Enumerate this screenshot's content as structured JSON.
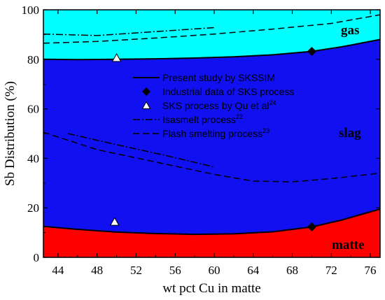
{
  "chart_data": {
    "type": "area",
    "xlabel": "wt pct Cu in matte",
    "ylabel": "Sb Distribution (%)",
    "xlim": [
      42.5,
      77
    ],
    "ylim": [
      0,
      100
    ],
    "xticks": [
      44,
      48,
      52,
      56,
      60,
      64,
      68,
      72,
      76
    ],
    "yticks": [
      0,
      20,
      40,
      60,
      80,
      100
    ],
    "colors": {
      "gas": "#00ffff",
      "slag": "#1010f0",
      "matte": "#ff0000"
    },
    "regions": [
      {
        "label": "gas",
        "color": "#00ffff"
      },
      {
        "label": "slag",
        "color": "#1010f0"
      },
      {
        "label": "matte",
        "color": "#ff0000"
      }
    ],
    "boundaries": {
      "matte_slag": [
        [
          42.5,
          12.5
        ],
        [
          46,
          11.3
        ],
        [
          50,
          10.2
        ],
        [
          54,
          9.6
        ],
        [
          58,
          9.3
        ],
        [
          62,
          9.5
        ],
        [
          66,
          10.3
        ],
        [
          70,
          12.3
        ],
        [
          73,
          15
        ],
        [
          77,
          19.5
        ]
      ],
      "slag_gas": [
        [
          42.5,
          80
        ],
        [
          46,
          79.9
        ],
        [
          50,
          80
        ],
        [
          54,
          80.2
        ],
        [
          58,
          80.5
        ],
        [
          62,
          81
        ],
        [
          66,
          81.8
        ],
        [
          70,
          83.2
        ],
        [
          73,
          85
        ],
        [
          77,
          88
        ]
      ]
    },
    "series": [
      {
        "name": "Present study by SKSSIM",
        "style": "solid"
      },
      {
        "name": "Industrial data of SKS process",
        "style": "diamond",
        "points": [
          [
            70,
            83.2
          ],
          [
            70,
            12.3
          ]
        ]
      },
      {
        "name": "SKS process by Qu et al",
        "sup": "24",
        "style": "triangle",
        "points": [
          [
            50,
            80.5
          ],
          [
            49.8,
            14.3
          ]
        ]
      },
      {
        "name": "Isasmelt process",
        "sup": "22",
        "style": "dashdot",
        "lines": [
          [
            [
              42.5,
              90.2
            ],
            [
              48,
              89.6
            ],
            [
              54,
              91.2
            ],
            [
              60,
              92.8
            ]
          ],
          [
            [
              45,
              50
            ],
            [
              50,
              45.5
            ],
            [
              55,
              41.2
            ],
            [
              60,
              36.5
            ]
          ]
        ]
      },
      {
        "name": "Flash smelting process",
        "sup": "23",
        "style": "dashed",
        "lines": [
          [
            [
              42.5,
              86.5
            ],
            [
              48,
              87.2
            ],
            [
              54,
              88.6
            ],
            [
              60,
              90.2
            ],
            [
              66,
              92.2
            ],
            [
              72,
              94.5
            ],
            [
              77,
              98
            ]
          ],
          [
            [
              42.5,
              50.5
            ],
            [
              48,
              43.5
            ],
            [
              54,
              38.5
            ],
            [
              60,
              33.5
            ],
            [
              64,
              30.8
            ],
            [
              68,
              30.5
            ],
            [
              72,
              31.8
            ],
            [
              77,
              34
            ]
          ]
        ]
      }
    ]
  }
}
